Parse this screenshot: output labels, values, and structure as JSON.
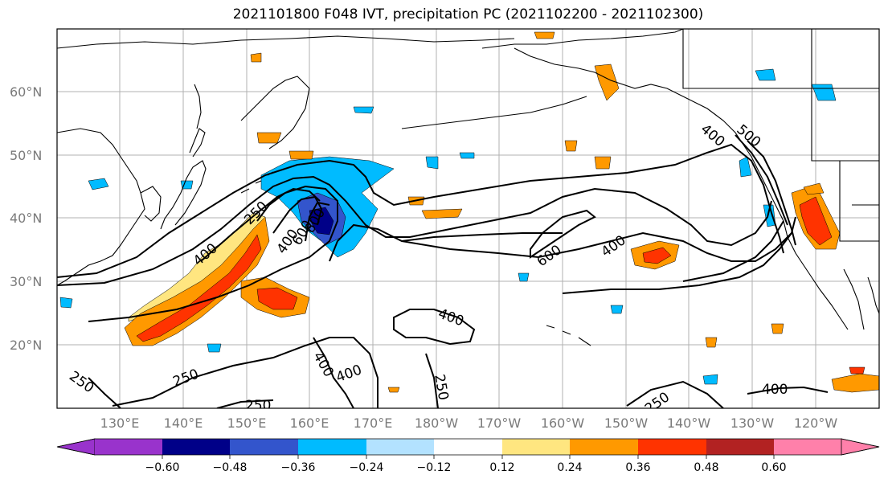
{
  "title": "2021101800 F048 IVT, precipitation PC (2021102200 - 2021102300)",
  "lat_labels": [
    "60°N",
    "50°N",
    "40°N",
    "30°N",
    "20°N"
  ],
  "lon_labels": [
    "130°E",
    "140°E",
    "150°E",
    "160°E",
    "170°E",
    "180°W",
    "170°W",
    "160°W",
    "150°W",
    "140°W",
    "130°W",
    "120°W"
  ],
  "colorbar": {
    "ticks": [
      "−0.60",
      "−0.48",
      "−0.36",
      "−0.24",
      "−0.12",
      "0.12",
      "0.24",
      "0.36",
      "0.48",
      "0.60"
    ],
    "colors": [
      "#9933cc",
      "#000088",
      "#3355cc",
      "#00bbff",
      "#b3e2ff",
      "#ffffff",
      "#ffe680",
      "#ff9900",
      "#ff3300",
      "#b22222",
      "#ff80aa"
    ]
  },
  "contour_labels": [
    "250",
    "400",
    "600",
    "400",
    "600",
    "250",
    "400",
    "400",
    "600",
    "400",
    "400",
    "500",
    "250",
    "250",
    "400",
    "400",
    "250",
    "250",
    "250",
    "250",
    "250"
  ]
}
